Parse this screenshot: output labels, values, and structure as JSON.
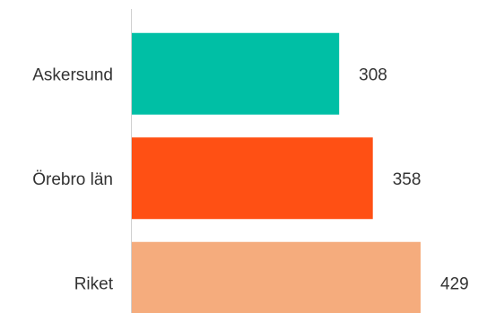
{
  "chart_data": {
    "type": "bar",
    "orientation": "horizontal",
    "categories": [
      "Askersund",
      "Örebro län",
      "Riket"
    ],
    "values": [
      308,
      358,
      429
    ],
    "colors": [
      "#00BFA5",
      "#FF5014",
      "#F5AC7D"
    ],
    "xlim": [
      0,
      500
    ],
    "grid": false,
    "axis_color": "#D0D0D0",
    "text_color": "#333333"
  }
}
